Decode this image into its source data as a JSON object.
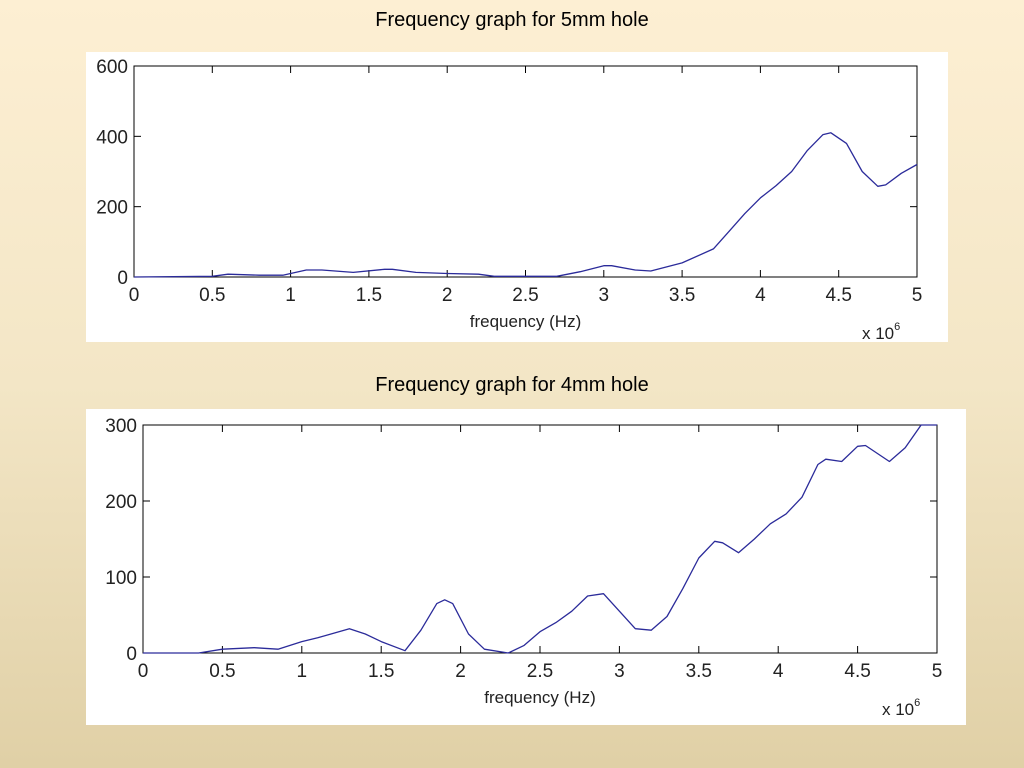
{
  "chart_data": [
    {
      "type": "line",
      "title": "Frequency graph for 5mm hole",
      "xlabel": "frequency (Hz)",
      "x_multiplier": "x 10^6",
      "xlim": [
        0,
        5
      ],
      "ylim": [
        0,
        600
      ],
      "xticks": [
        "0",
        "0.5",
        "1",
        "1.5",
        "2",
        "2.5",
        "3",
        "3.5",
        "4",
        "4.5",
        "5"
      ],
      "yticks": [
        "0",
        "200",
        "400",
        "600"
      ],
      "grid": false,
      "line_color": "#2b2b9a",
      "x": [
        0,
        0.5,
        0.6,
        0.8,
        0.95,
        1.1,
        1.2,
        1.4,
        1.6,
        1.65,
        1.8,
        2,
        2.2,
        2.3,
        2.5,
        2.7,
        2.85,
        3.0,
        3.05,
        3.2,
        3.3,
        3.5,
        3.7,
        3.8,
        3.9,
        4,
        4.1,
        4.2,
        4.3,
        4.4,
        4.45,
        4.55,
        4.65,
        4.75,
        4.8,
        4.9,
        5
      ],
      "y": [
        0,
        2,
        8,
        5,
        5,
        20,
        20,
        13,
        22,
        22,
        13,
        10,
        8,
        2,
        2,
        2,
        15,
        32,
        32,
        20,
        17,
        40,
        80,
        130,
        180,
        225,
        260,
        300,
        360,
        405,
        410,
        380,
        300,
        258,
        262,
        295,
        320
      ]
    },
    {
      "type": "line",
      "title": "Frequency graph for 4mm hole",
      "xlabel": "frequency (Hz)",
      "x_multiplier": "x 10^6",
      "xlim": [
        0,
        5
      ],
      "ylim": [
        0,
        300
      ],
      "xticks": [
        "0",
        "0.5",
        "1",
        "1.5",
        "2",
        "2.5",
        "3",
        "3.5",
        "4",
        "4.5",
        "5"
      ],
      "yticks": [
        "0",
        "100",
        "200",
        "300"
      ],
      "grid": false,
      "line_color": "#2b2b9a",
      "x": [
        0,
        0.35,
        0.5,
        0.7,
        0.85,
        1,
        1.1,
        1.3,
        1.4,
        1.5,
        1.65,
        1.75,
        1.85,
        1.9,
        1.95,
        2.05,
        2.15,
        2.3,
        2.4,
        2.5,
        2.6,
        2.7,
        2.8,
        2.9,
        3.0,
        3.1,
        3.2,
        3.3,
        3.4,
        3.5,
        3.6,
        3.65,
        3.75,
        3.85,
        3.95,
        4.05,
        4.15,
        4.25,
        4.3,
        4.4,
        4.5,
        4.55,
        4.7,
        4.8,
        4.9,
        5
      ],
      "y": [
        0,
        0,
        5,
        7,
        5,
        15,
        20,
        32,
        25,
        15,
        3,
        30,
        65,
        70,
        65,
        25,
        5,
        0,
        10,
        28,
        40,
        55,
        75,
        78,
        55,
        32,
        30,
        48,
        85,
        125,
        147,
        145,
        132,
        150,
        170,
        183,
        205,
        248,
        255,
        252,
        272,
        273,
        252,
        270,
        300,
        300
      ]
    }
  ]
}
